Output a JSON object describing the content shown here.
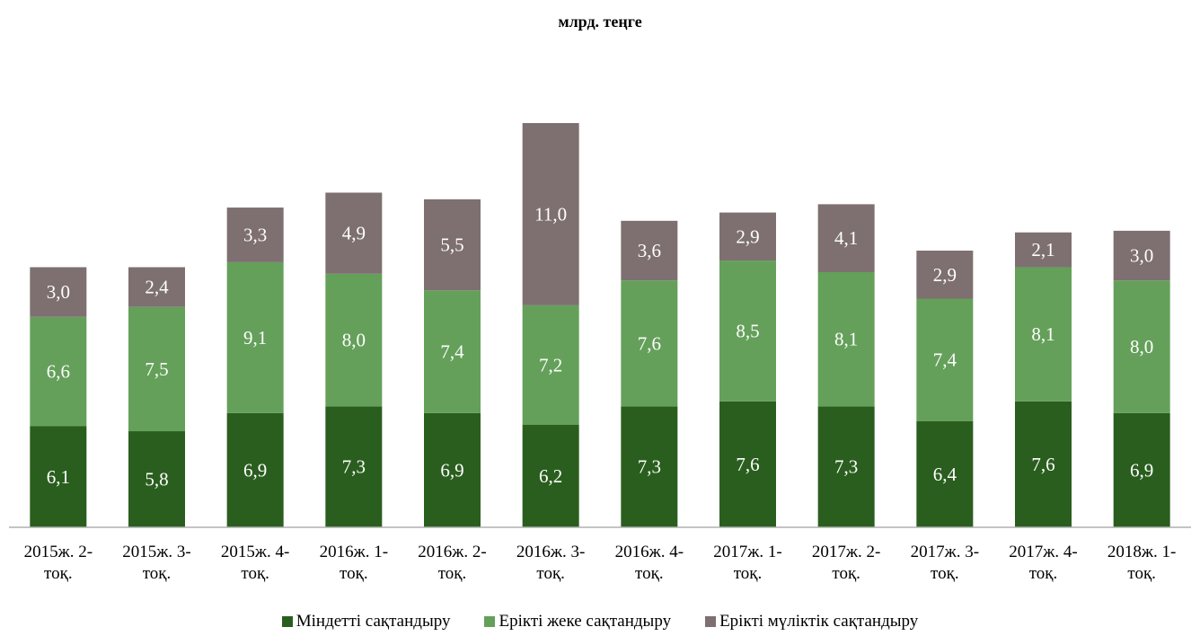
{
  "chart_data": {
    "type": "bar",
    "stacked": true,
    "title": "млрд. теңге",
    "categories": [
      [
        "2015ж. 2-",
        "тоқ."
      ],
      [
        "2015ж. 3-",
        "тоқ."
      ],
      [
        "2015ж. 4-",
        "тоқ."
      ],
      [
        "2016ж. 1-",
        "тоқ."
      ],
      [
        "2016ж. 2-",
        "тоқ."
      ],
      [
        "2016ж. 3-",
        "тоқ."
      ],
      [
        "2016ж. 4-",
        "тоқ."
      ],
      [
        "2017ж. 1-",
        "тоқ."
      ],
      [
        "2017ж. 2-",
        "тоқ."
      ],
      [
        "2017ж. 3-",
        "тоқ."
      ],
      [
        "2017ж. 4-",
        "тоқ."
      ],
      [
        "2018ж. 1-",
        "тоқ."
      ]
    ],
    "series": [
      {
        "name": "Міндетті сақтандыру",
        "color": "#2a5e1e",
        "values": [
          6.1,
          5.8,
          6.9,
          7.3,
          6.9,
          6.2,
          7.3,
          7.6,
          7.3,
          6.4,
          7.6,
          6.9
        ],
        "labels": [
          "6,1",
          "5,8",
          "6,9",
          "7,3",
          "6,9",
          "6,2",
          "7,3",
          "7,6",
          "7,3",
          "6,4",
          "7,6",
          "6,9"
        ]
      },
      {
        "name": "Ерікті жеке сақтандыру",
        "color": "#64a05a",
        "values": [
          6.6,
          7.5,
          9.1,
          8.0,
          7.4,
          7.2,
          7.6,
          8.5,
          8.1,
          7.4,
          8.1,
          8.0
        ],
        "labels": [
          "6,6",
          "7,5",
          "9,1",
          "8,0",
          "7,4",
          "7,2",
          "7,6",
          "8,5",
          "8,1",
          "7,4",
          "8,1",
          "8,0"
        ]
      },
      {
        "name": "Ерікті мүліктік сақтандыру",
        "color": "#7e7070",
        "values": [
          3.0,
          2.4,
          3.3,
          4.9,
          5.5,
          11.0,
          3.6,
          2.9,
          4.1,
          2.9,
          2.1,
          3.0
        ],
        "labels": [
          "3,0",
          "2,4",
          "3,3",
          "4,9",
          "5,5",
          "11,0",
          "3,6",
          "2,9",
          "4,1",
          "2,9",
          "2,1",
          "3,0"
        ]
      }
    ],
    "ylim": [
      0,
      24.4
    ],
    "grid": false,
    "legend_position": "bottom"
  }
}
